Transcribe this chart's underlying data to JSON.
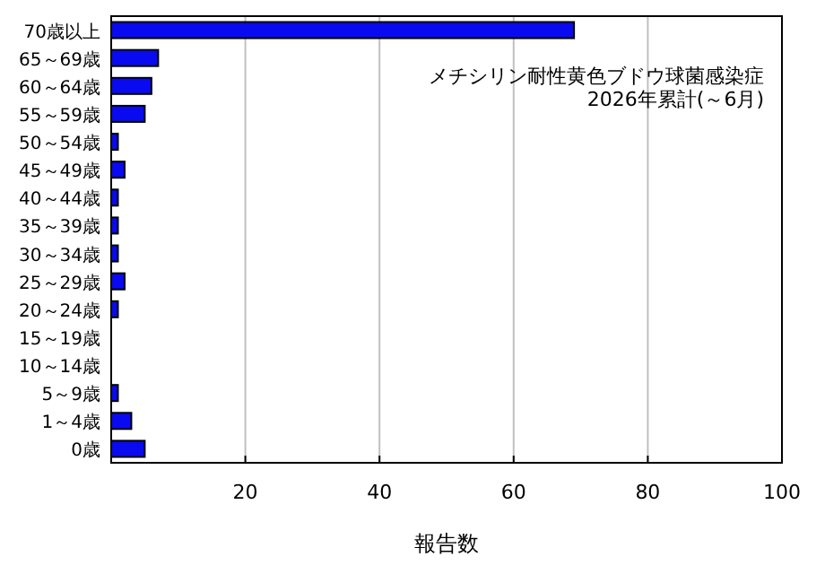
{
  "chart_data": {
    "type": "bar",
    "orientation": "horizontal",
    "title": "メチシリン耐性黄色ブドウ球菌感染症\n2026年累計(～6月)",
    "xlabel": "報告数",
    "categories": [
      "70歳以上",
      "65～69歳",
      "60～64歳",
      "55～59歳",
      "50～54歳",
      "45～49歳",
      "40～44歳",
      "35～39歳",
      "30～34歳",
      "25～29歳",
      "20～24歳",
      "15～19歳",
      "10～14歳",
      "5～9歳",
      "1～4歳",
      "0歳"
    ],
    "values": [
      69,
      7,
      6,
      5,
      1,
      2,
      1,
      1,
      1,
      2,
      1,
      0,
      0,
      1,
      3,
      5
    ],
    "color": "#0a0af0",
    "xlim": [
      0,
      100
    ],
    "xticks": [
      20,
      40,
      60,
      80,
      100
    ],
    "grid": "x"
  }
}
